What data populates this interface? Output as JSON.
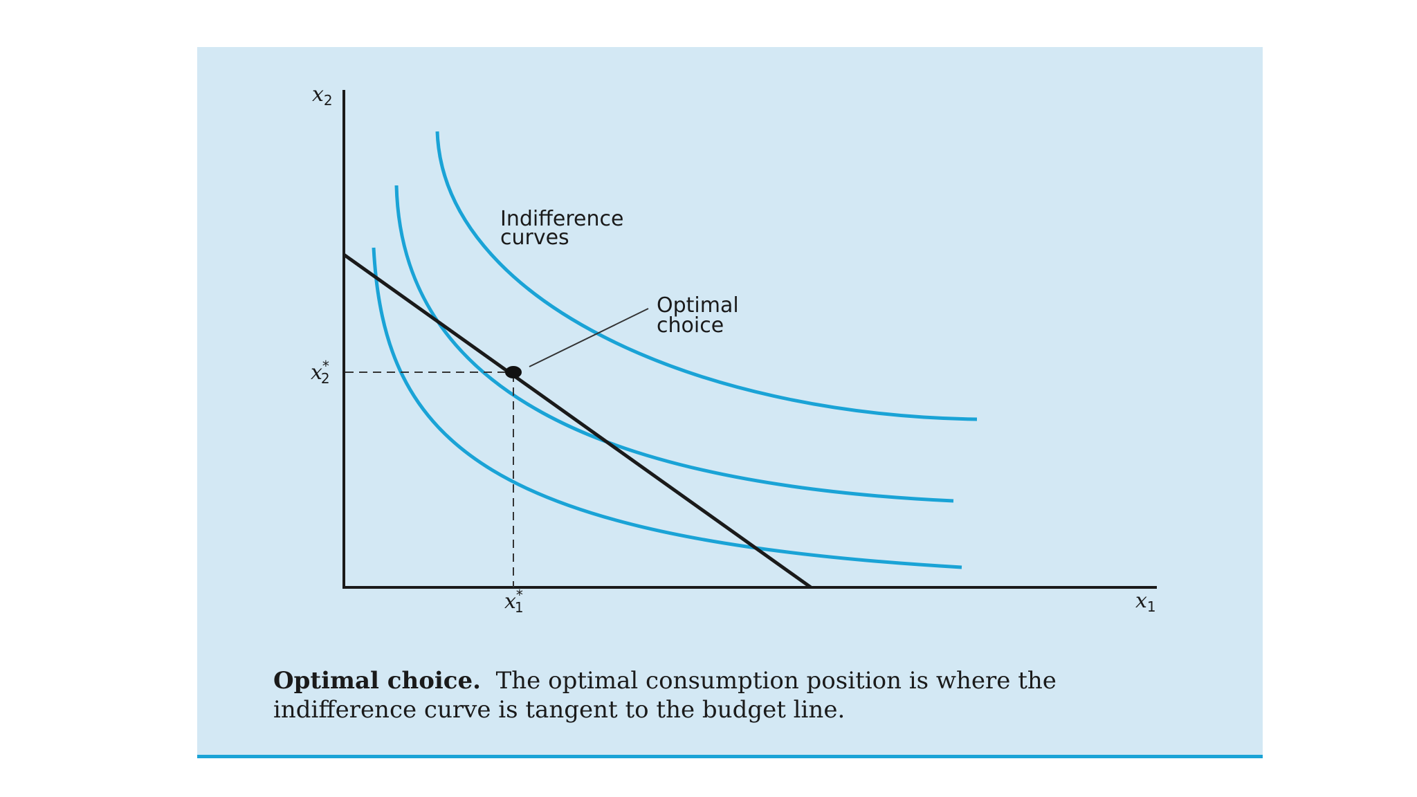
{
  "diagram": {
    "axes": {
      "y_label": "x",
      "y_label_sub": "2",
      "x_label": "x",
      "x_label_sub": "1"
    },
    "marks": {
      "x2_star": "x",
      "x2_star_sub": "2",
      "x2_star_sup": "*",
      "x1_star": "x",
      "x1_star_sub": "1",
      "x1_star_sup": "*"
    },
    "labels": {
      "indifference_line1": "Indifference",
      "indifference_line2": "curves",
      "optimal_line1": "Optimal",
      "optimal_line2": "choice"
    },
    "colors": {
      "panel_background": "#d3e8f4",
      "curve": "#1aa3d6",
      "axis": "#1a1a1a"
    }
  },
  "caption": {
    "title": "Optimal choice.",
    "text": "The optimal consumption position is where the indifference curve is tangent to the budget line."
  }
}
